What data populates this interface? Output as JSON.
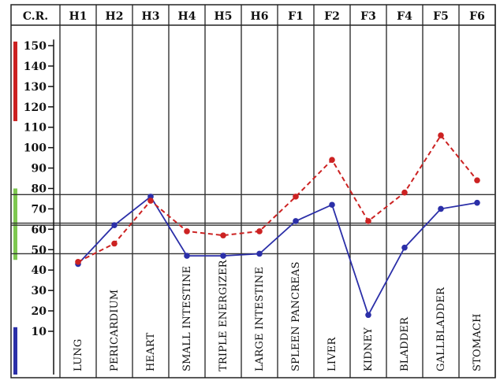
{
  "chart_data": {
    "type": "line",
    "header_label": "C.R.",
    "columns": [
      {
        "code": "H1",
        "organ": "LUNG"
      },
      {
        "code": "H2",
        "organ": "PERICARDIUM"
      },
      {
        "code": "H3",
        "organ": "HEART"
      },
      {
        "code": "H4",
        "organ": "SMALL INTESTINE"
      },
      {
        "code": "H5",
        "organ": "TRIPLE ENERGIZER"
      },
      {
        "code": "H6",
        "organ": "LARGE INTESTINE"
      },
      {
        "code": "F1",
        "organ": "SPLEEN PANCREAS"
      },
      {
        "code": "F2",
        "organ": "LIVER"
      },
      {
        "code": "F3",
        "organ": "KIDNEY"
      },
      {
        "code": "F4",
        "organ": "BLADDER"
      },
      {
        "code": "F5",
        "organ": "GALLBLADDER"
      },
      {
        "code": "F6",
        "organ": "STOMACH"
      }
    ],
    "y_ticks": [
      10,
      20,
      30,
      40,
      50,
      60,
      70,
      80,
      90,
      100,
      110,
      120,
      130,
      140,
      150
    ],
    "ylim": [
      0,
      155
    ],
    "reference_lines": [
      48,
      62,
      63,
      77
    ],
    "series": [
      {
        "style": "solid",
        "color": "#2b2fa8",
        "values": [
          43,
          62,
          76,
          47,
          47,
          48,
          64,
          72,
          18,
          51,
          70,
          73
        ]
      },
      {
        "style": "dashed",
        "color": "#cc2222",
        "values": [
          44,
          53,
          74,
          59,
          57,
          59,
          76,
          94,
          64,
          78,
          106,
          84
        ]
      }
    ],
    "range_bars": [
      {
        "color": "#cc2020",
        "from": 113,
        "to": 152
      },
      {
        "color": "#7ec850",
        "from": 45,
        "to": 80
      },
      {
        "color": "#2b2fa8",
        "from": 0,
        "to": 12
      }
    ]
  }
}
